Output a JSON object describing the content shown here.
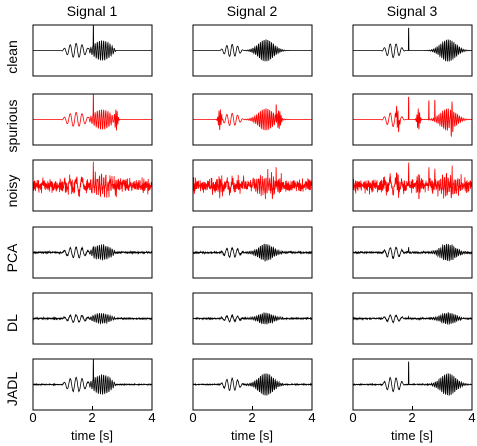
{
  "chart_data": {
    "type": "line",
    "columns": [
      "Signal 1",
      "Signal 2",
      "Signal 3"
    ],
    "rows": [
      "clean",
      "spurious",
      "noisy",
      "PCA",
      "DL",
      "JADL"
    ],
    "xlabel": "time [s]",
    "xlim": [
      0,
      4
    ],
    "xticks": [
      "0",
      "2",
      "4"
    ],
    "grid": false,
    "legend": "none",
    "row_colors": {
      "clean": "#000000",
      "spurious": "#ff0000",
      "noisy": "#ff0000",
      "PCA": "#000000",
      "DL": "#000000",
      "JADL": "#000000"
    },
    "signals": {
      "Signal 1": {
        "oscillation_start_s": 0.95,
        "oscillation_end_s": 2.8,
        "spike_time_s": 2.03,
        "spurious_bursts_s": [
          2.8
        ],
        "spurious_spikes_s": [
          2.03
        ]
      },
      "Signal 2": {
        "oscillation_start_s": 0.9,
        "oscillation_end_s": 2.95,
        "burst_center_s": 2.45,
        "spike_time_s": null,
        "spurious_bursts_s": [
          0.9,
          2.9
        ],
        "spurious_spikes_s": [
          2.8
        ]
      },
      "Signal 3": {
        "oscillation_start_s": 0.95,
        "oscillation_end_s": 1.75,
        "burst_center_s": 3.2,
        "spike_time_s": 1.87,
        "spurious_bursts_s": [
          1.5,
          2.2,
          3.3
        ],
        "spurious_spikes_s": [
          1.87,
          2.55,
          2.75
        ]
      }
    }
  }
}
